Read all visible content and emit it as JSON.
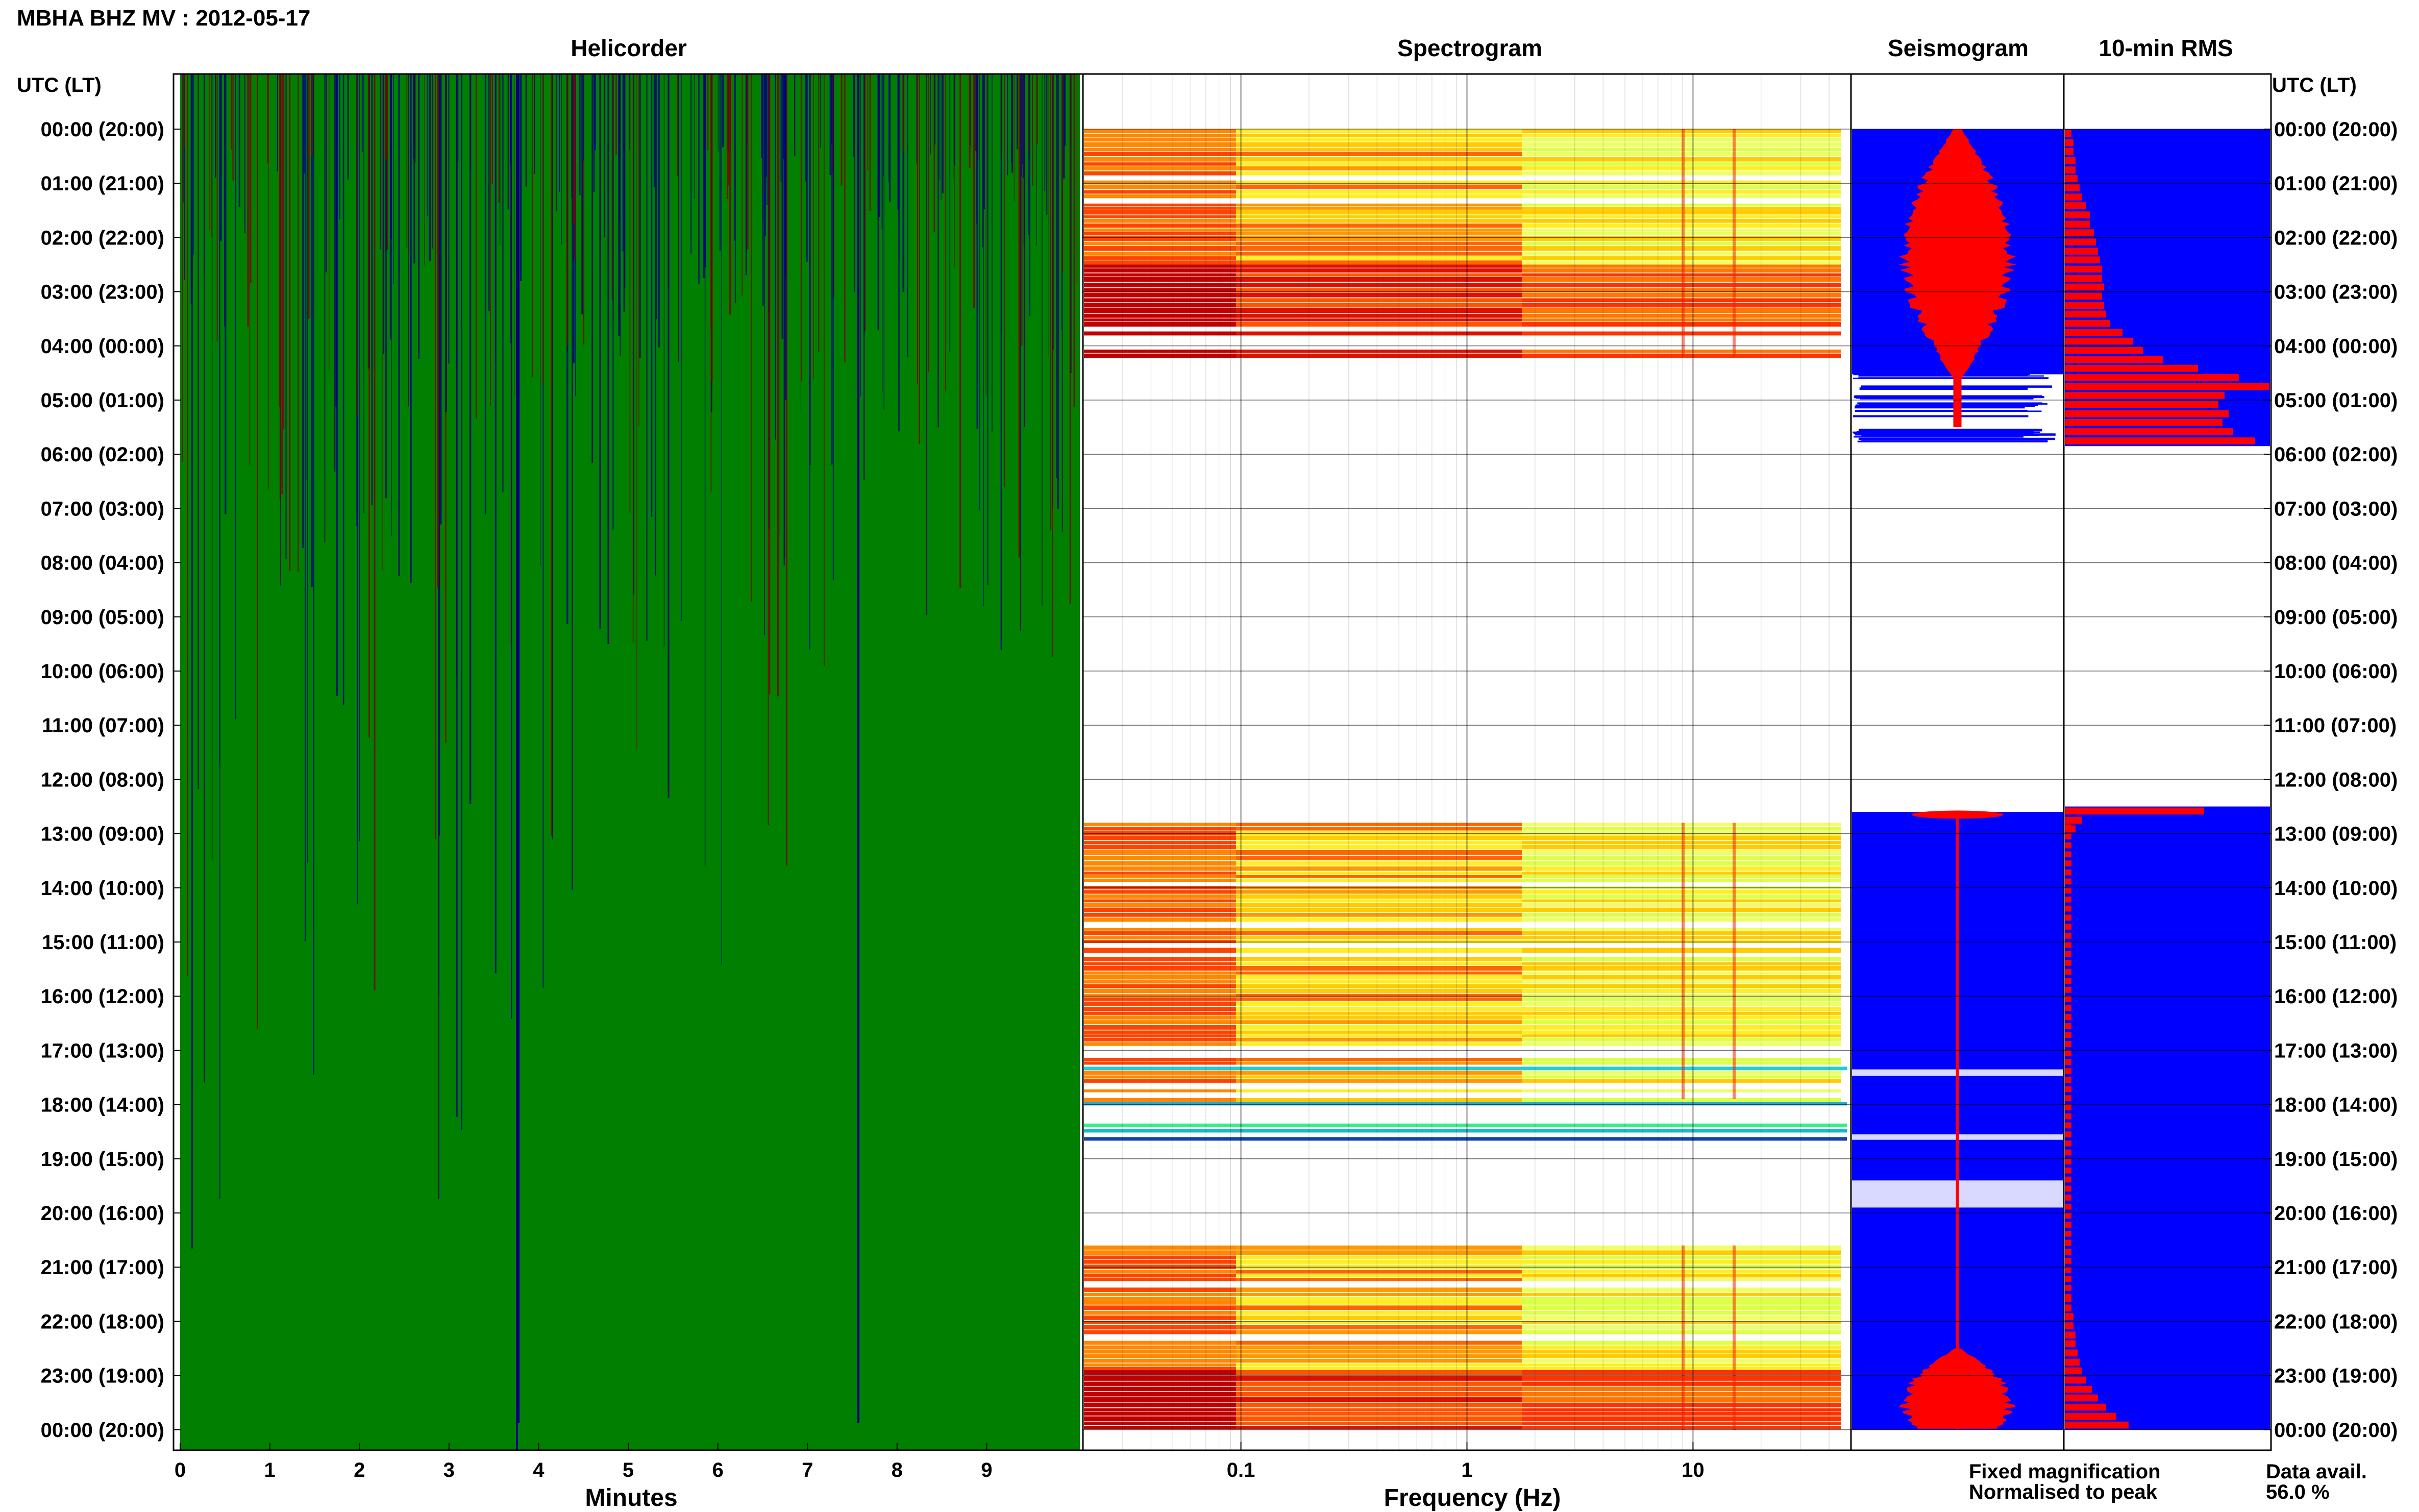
{
  "title": "MBHA BHZ MV : 2012-05-17",
  "panels": {
    "helicorder": "Helicorder",
    "spectrogram": "Spectrogram",
    "seismogram": "Seismogram",
    "rms": "10-min RMS"
  },
  "time_axis_label": "UTC (LT)",
  "time_labels": [
    "00:00 (20:00)",
    "01:00 (21:00)",
    "02:00 (22:00)",
    "03:00 (23:00)",
    "04:00 (00:00)",
    "05:00 (01:00)",
    "06:00 (02:00)",
    "07:00 (03:00)",
    "08:00 (04:00)",
    "09:00 (05:00)",
    "10:00 (06:00)",
    "11:00 (07:00)",
    "12:00 (08:00)",
    "13:00 (09:00)",
    "14:00 (10:00)",
    "15:00 (11:00)",
    "16:00 (12:00)",
    "17:00 (13:00)",
    "18:00 (14:00)",
    "19:00 (15:00)",
    "20:00 (16:00)",
    "21:00 (17:00)",
    "22:00 (18:00)",
    "23:00 (19:00)",
    "00:00 (20:00)"
  ],
  "legend": {
    "fixed": "Fixed magnification",
    "normalised": "Normalised to peak",
    "fixed_color": "#0000ff",
    "normalised_color": "#ff0000"
  },
  "data_avail": {
    "label": "Data avail.",
    "value": "56.0 %"
  },
  "colors": {
    "helicorder_fill": "#007f00",
    "helicorder_line_a": "#00007f",
    "helicorder_line_b": "#7f0000",
    "seismogram_fixed": "#0000ff",
    "seismogram_norm": "#ff0000",
    "rms_bar": "#ff0000",
    "rms_bg": "#0000ff"
  },
  "chart_data": [
    {
      "type": "heatmap",
      "title": "Helicorder",
      "xlabel": "Minutes",
      "x_ticks": [
        0,
        1,
        2,
        3,
        4,
        5,
        6,
        7,
        8,
        9
      ],
      "xlim": [
        0,
        10
      ]
    },
    {
      "type": "heatmap",
      "title": "Spectrogram",
      "xlabel": "Frequency (Hz)",
      "x_scale": "log",
      "x_ticks": [
        0.1,
        1,
        10
      ],
      "x_tick_labels": [
        "0.1",
        "1",
        "10"
      ],
      "xlim": [
        0.02,
        50
      ],
      "data_hours": [
        [
          0,
          4.2
        ],
        [
          12.8,
          17.9
        ],
        [
          17.9,
          18.7
        ],
        [
          20.6,
          24
        ]
      ]
    },
    {
      "type": "line",
      "title": "Seismogram",
      "data_hours": [
        [
          0,
          5.8
        ],
        [
          12.6,
          24
        ]
      ]
    },
    {
      "type": "bar",
      "title": "10-min RMS",
      "interval_min": 10,
      "value_scale": "normalised 0-1",
      "bins": [
        {
          "t": 0.0,
          "v": 0.03
        },
        {
          "t": 0.17,
          "v": 0.04
        },
        {
          "t": 0.33,
          "v": 0.04
        },
        {
          "t": 0.5,
          "v": 0.05
        },
        {
          "t": 0.67,
          "v": 0.05
        },
        {
          "t": 0.83,
          "v": 0.06
        },
        {
          "t": 1.0,
          "v": 0.07
        },
        {
          "t": 1.17,
          "v": 0.08
        },
        {
          "t": 1.33,
          "v": 0.1
        },
        {
          "t": 1.5,
          "v": 0.12
        },
        {
          "t": 1.67,
          "v": 0.12
        },
        {
          "t": 1.83,
          "v": 0.14
        },
        {
          "t": 2.0,
          "v": 0.15
        },
        {
          "t": 2.17,
          "v": 0.16
        },
        {
          "t": 2.33,
          "v": 0.17
        },
        {
          "t": 2.5,
          "v": 0.18
        },
        {
          "t": 2.67,
          "v": 0.18
        },
        {
          "t": 2.83,
          "v": 0.19
        },
        {
          "t": 3.0,
          "v": 0.18
        },
        {
          "t": 3.17,
          "v": 0.19
        },
        {
          "t": 3.33,
          "v": 0.2
        },
        {
          "t": 3.5,
          "v": 0.22
        },
        {
          "t": 3.67,
          "v": 0.28
        },
        {
          "t": 3.83,
          "v": 0.33
        },
        {
          "t": 4.0,
          "v": 0.38
        },
        {
          "t": 4.17,
          "v": 0.48
        },
        {
          "t": 4.33,
          "v": 0.65
        },
        {
          "t": 4.5,
          "v": 0.85
        },
        {
          "t": 4.67,
          "v": 1.0
        },
        {
          "t": 4.83,
          "v": 0.78
        },
        {
          "t": 5.0,
          "v": 0.75
        },
        {
          "t": 5.17,
          "v": 0.8
        },
        {
          "t": 5.33,
          "v": 0.77
        },
        {
          "t": 5.5,
          "v": 0.82
        },
        {
          "t": 5.67,
          "v": 0.93
        },
        {
          "t": 12.5,
          "v": 0.68
        },
        {
          "t": 12.67,
          "v": 0.08
        },
        {
          "t": 12.83,
          "v": 0.05
        },
        {
          "t": 21.5,
          "v": 0.03
        },
        {
          "t": 21.67,
          "v": 0.03
        },
        {
          "t": 21.83,
          "v": 0.04
        },
        {
          "t": 22.0,
          "v": 0.04
        },
        {
          "t": 22.17,
          "v": 0.05
        },
        {
          "t": 22.33,
          "v": 0.05
        },
        {
          "t": 22.5,
          "v": 0.06
        },
        {
          "t": 22.67,
          "v": 0.07
        },
        {
          "t": 22.83,
          "v": 0.08
        },
        {
          "t": 23.0,
          "v": 0.1
        },
        {
          "t": 23.17,
          "v": 0.13
        },
        {
          "t": 23.33,
          "v": 0.16
        },
        {
          "t": 23.5,
          "v": 0.2
        },
        {
          "t": 23.67,
          "v": 0.25
        },
        {
          "t": 23.83,
          "v": 0.31
        }
      ]
    }
  ]
}
